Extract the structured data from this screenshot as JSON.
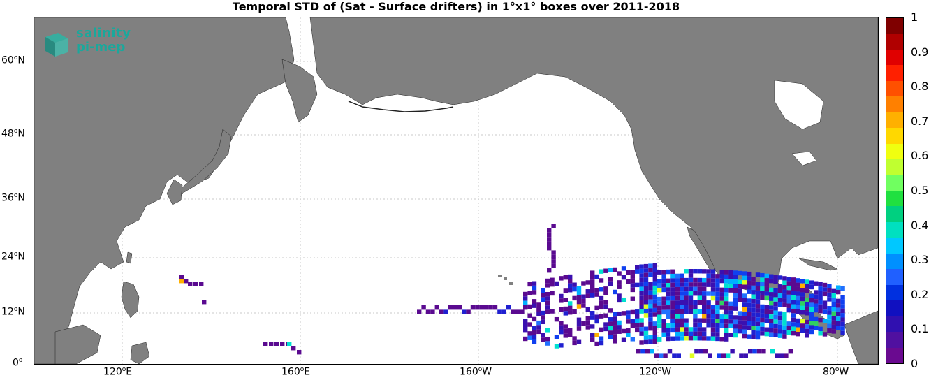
{
  "title": "Temporal STD of (Sat - Surface drifters) in 1°x1° boxes over 2011-2018",
  "logo": {
    "line1": "salinity",
    "line2": "pi-mep"
  },
  "lat_labels": [
    {
      "num": "60",
      "hem": "N"
    },
    {
      "num": "48",
      "hem": "N"
    },
    {
      "num": "36",
      "hem": "N"
    },
    {
      "num": "24",
      "hem": "N"
    },
    {
      "num": "12",
      "hem": "N"
    },
    {
      "num": "0",
      "hem": ""
    }
  ],
  "lon_labels": [
    {
      "num": "120",
      "hem": "E"
    },
    {
      "num": "160",
      "hem": "E"
    },
    {
      "num": "160",
      "hem": "W"
    },
    {
      "num": "120",
      "hem": "W"
    },
    {
      "num": "80",
      "hem": "W"
    }
  ],
  "colorbar": {
    "ticks": [
      "1",
      "0.9",
      "0.8",
      "0.7",
      "0.6",
      "0.5",
      "0.4",
      "0.3",
      "0.2",
      "0.1",
      "0"
    ],
    "colors": [
      "#7f0000",
      "#b00000",
      "#e00000",
      "#ff2000",
      "#ff5000",
      "#ff8000",
      "#ffb000",
      "#ffd800",
      "#f0ff10",
      "#c0ff30",
      "#70ff60",
      "#20e040",
      "#00d080",
      "#00e0c0",
      "#00c8ff",
      "#0090ff",
      "#2060ff",
      "#0030e0",
      "#1010c0",
      "#3010b0",
      "#5010a0",
      "#6a0a90"
    ]
  },
  "map_colors": {
    "land": "#808080",
    "ocean": "#ffffff",
    "grid": "#c8c8c8"
  }
}
